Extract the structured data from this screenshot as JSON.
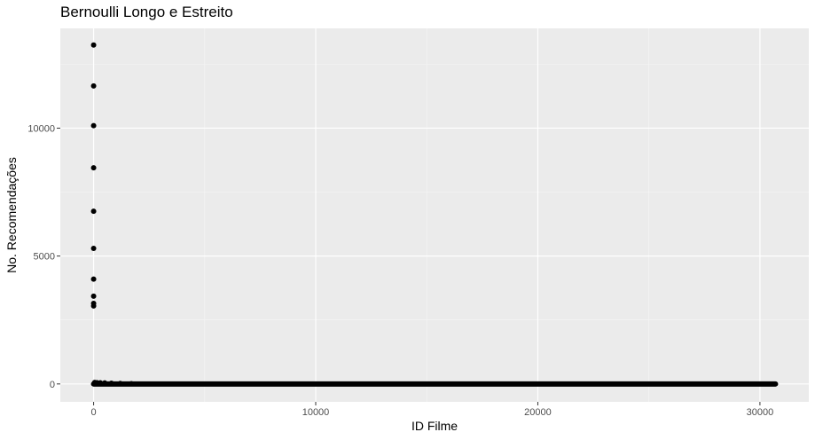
{
  "chart_data": {
    "type": "scatter",
    "title": "Bernoulli Longo e Estreito",
    "xlabel": "ID Filme",
    "ylabel": "No. Recomendações",
    "xlim": [
      -1500,
      32200
    ],
    "ylim": [
      -700,
      13900
    ],
    "x_ticks": [
      0,
      10000,
      20000,
      30000
    ],
    "y_ticks": [
      0,
      5000,
      10000
    ],
    "x_tick_labels": [
      "0",
      "10000",
      "20000",
      "30000"
    ],
    "y_tick_labels": [
      "0",
      "5000",
      "10000"
    ],
    "grid": true,
    "points": [
      {
        "x": 0,
        "y": 13250
      },
      {
        "x": 0,
        "y": 11650
      },
      {
        "x": 0,
        "y": 10100
      },
      {
        "x": 0,
        "y": 8450
      },
      {
        "x": 0,
        "y": 6750
      },
      {
        "x": 0,
        "y": 5300
      },
      {
        "x": 0,
        "y": 4100
      },
      {
        "x": 0,
        "y": 3430
      },
      {
        "x": 0,
        "y": 3150
      },
      {
        "x": 0,
        "y": 3050
      },
      {
        "x": 50,
        "y": 60
      },
      {
        "x": 150,
        "y": 50
      },
      {
        "x": 300,
        "y": 45
      },
      {
        "x": 500,
        "y": 40
      },
      {
        "x": 800,
        "y": 30
      },
      {
        "x": 1200,
        "y": 20
      },
      {
        "x": 1700,
        "y": 10
      }
    ],
    "dense_band": {
      "x_start": 0,
      "x_end": 30700,
      "y": 0
    }
  }
}
